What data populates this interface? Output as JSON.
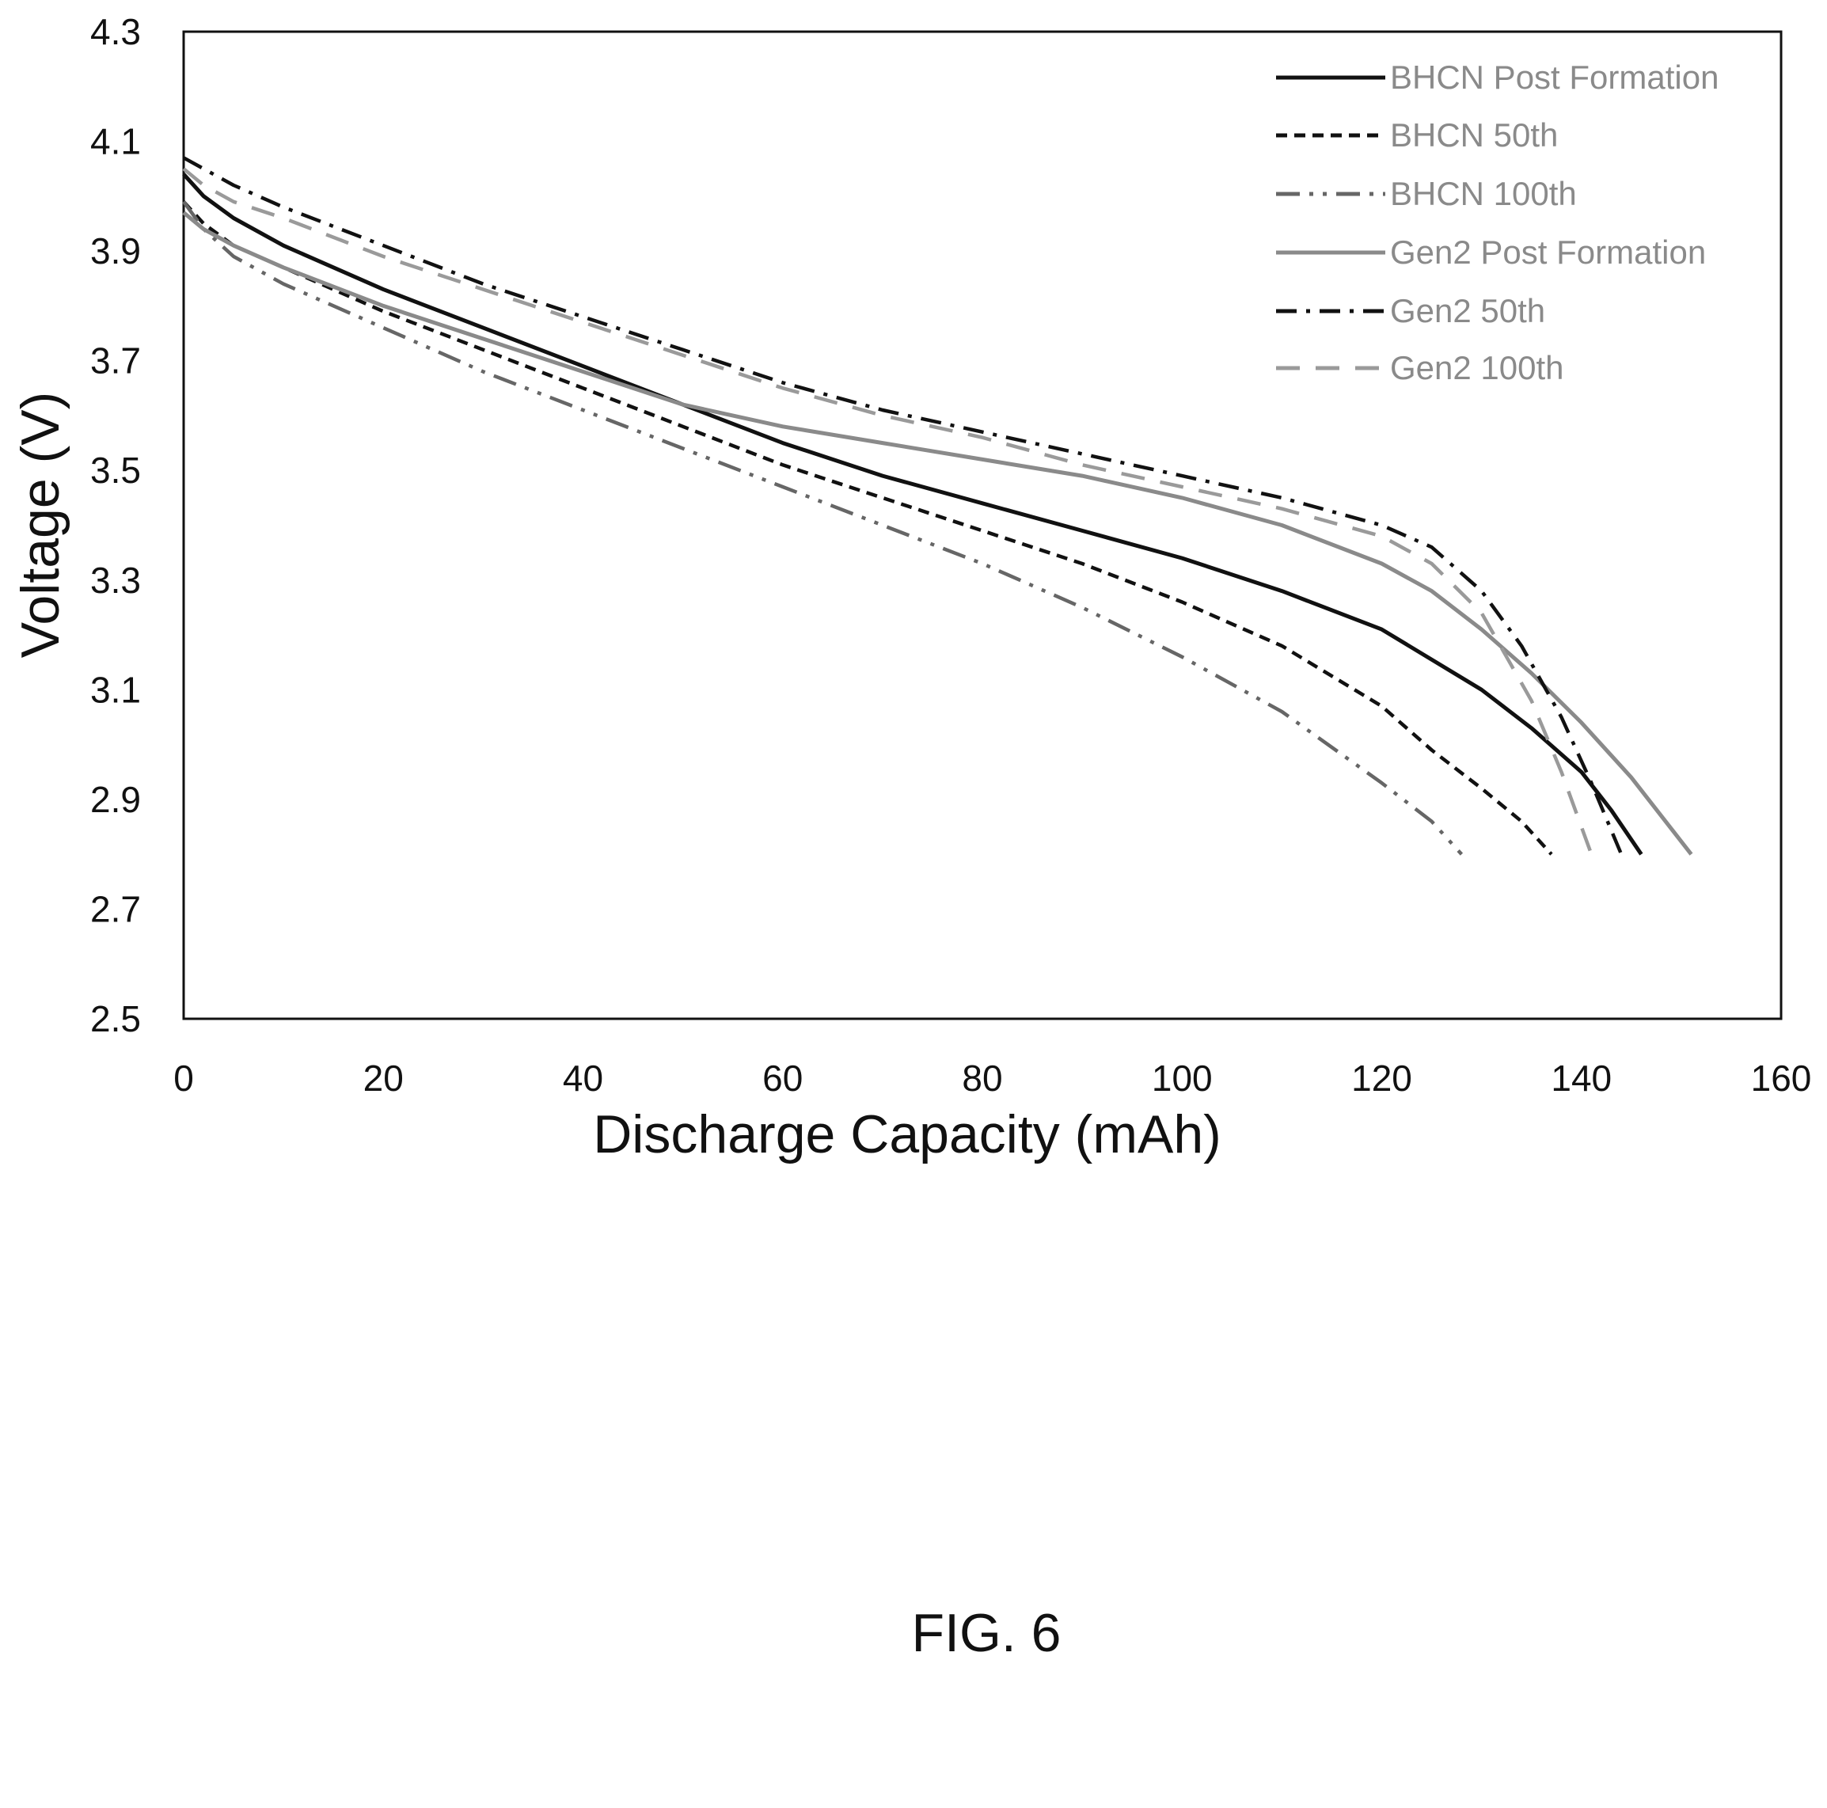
{
  "figure_caption": "FIG. 6",
  "chart_data": {
    "type": "line",
    "xlabel": "Discharge Capacity (mAh)",
    "ylabel": "Voltage (V)",
    "xlim": [
      0,
      160
    ],
    "ylim": [
      2.5,
      4.3
    ],
    "xticks": [
      "0",
      "20",
      "40",
      "60",
      "80",
      "100",
      "120",
      "140",
      "160"
    ],
    "yticks": [
      "4.3",
      "4.1",
      "3.9",
      "3.7",
      "3.5",
      "3.3",
      "3.1",
      "2.9",
      "2.7",
      "2.5"
    ],
    "grid": false,
    "legend_position": "top-right",
    "series": [
      {
        "name": "BHCN Post Formation",
        "color": "#111111",
        "dash": "solid",
        "x": [
          0,
          2,
          5,
          10,
          20,
          30,
          40,
          50,
          60,
          70,
          80,
          90,
          100,
          110,
          120,
          130,
          135,
          140,
          143,
          146
        ],
        "y": [
          4.04,
          4.0,
          3.96,
          3.91,
          3.83,
          3.76,
          3.69,
          3.62,
          3.55,
          3.49,
          3.44,
          3.39,
          3.34,
          3.28,
          3.21,
          3.1,
          3.03,
          2.95,
          2.88,
          2.8
        ]
      },
      {
        "name": "BHCN 50th",
        "color": "#111111",
        "dash": "short-dash",
        "x": [
          0,
          2,
          5,
          10,
          20,
          30,
          40,
          50,
          60,
          70,
          80,
          90,
          100,
          110,
          120,
          125,
          130,
          134,
          137
        ],
        "y": [
          3.99,
          3.95,
          3.91,
          3.87,
          3.79,
          3.72,
          3.65,
          3.58,
          3.51,
          3.45,
          3.39,
          3.33,
          3.26,
          3.18,
          3.07,
          2.99,
          2.92,
          2.86,
          2.8
        ]
      },
      {
        "name": "BHCN 100th",
        "color": "#666666",
        "dash": "long-dash-dot-dot",
        "x": [
          0,
          2,
          5,
          10,
          20,
          30,
          40,
          50,
          60,
          70,
          80,
          90,
          100,
          110,
          120,
          125,
          128
        ],
        "y": [
          3.99,
          3.94,
          3.89,
          3.84,
          3.76,
          3.68,
          3.61,
          3.54,
          3.47,
          3.4,
          3.33,
          3.25,
          3.16,
          3.06,
          2.93,
          2.86,
          2.8
        ]
      },
      {
        "name": "Gen2 Post Formation",
        "color": "#8a8a8a",
        "dash": "solid",
        "x": [
          0,
          2,
          5,
          10,
          20,
          30,
          40,
          50,
          60,
          70,
          80,
          90,
          100,
          110,
          120,
          125,
          130,
          135,
          140,
          145,
          151
        ],
        "y": [
          3.97,
          3.94,
          3.91,
          3.87,
          3.8,
          3.74,
          3.68,
          3.62,
          3.58,
          3.55,
          3.52,
          3.49,
          3.45,
          3.4,
          3.33,
          3.28,
          3.21,
          3.13,
          3.04,
          2.94,
          2.8
        ]
      },
      {
        "name": "Gen2 50th",
        "color": "#111111",
        "dash": "dash-dot",
        "x": [
          0,
          2,
          5,
          10,
          20,
          30,
          40,
          50,
          60,
          70,
          80,
          90,
          100,
          110,
          120,
          125,
          130,
          134,
          138,
          141,
          144
        ],
        "y": [
          4.07,
          4.05,
          4.02,
          3.98,
          3.91,
          3.84,
          3.78,
          3.72,
          3.66,
          3.61,
          3.57,
          3.53,
          3.49,
          3.45,
          3.4,
          3.36,
          3.28,
          3.18,
          3.05,
          2.93,
          2.8
        ]
      },
      {
        "name": "Gen2 100th",
        "color": "#9a9a9a",
        "dash": "long-dash",
        "x": [
          0,
          2,
          5,
          10,
          20,
          30,
          40,
          50,
          60,
          70,
          80,
          90,
          100,
          110,
          120,
          125,
          130,
          135,
          138,
          141
        ],
        "y": [
          4.05,
          4.02,
          3.99,
          3.96,
          3.89,
          3.83,
          3.77,
          3.71,
          3.65,
          3.6,
          3.56,
          3.51,
          3.47,
          3.43,
          3.38,
          3.33,
          3.24,
          3.08,
          2.95,
          2.8
        ]
      }
    ]
  }
}
